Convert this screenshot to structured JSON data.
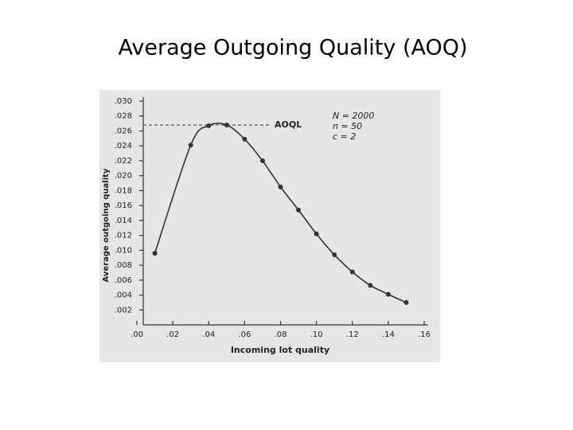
{
  "chart_data": {
    "type": "line",
    "title": "Average Outgoing Quality (AOQ)",
    "x_label": "Incoming lot quality",
    "y_label": "Average outgoing quality",
    "x": [
      0.01,
      0.03,
      0.04,
      0.05,
      0.06,
      0.07,
      0.08,
      0.09,
      0.1,
      0.11,
      0.12,
      0.13,
      0.14,
      0.15
    ],
    "values": [
      0.0096,
      0.0241,
      0.0267,
      0.0268,
      0.0249,
      0.022,
      0.0185,
      0.0154,
      0.0122,
      0.0094,
      0.0071,
      0.0053,
      0.0041,
      0.003
    ],
    "color": "#333333",
    "aoql": 0.0268,
    "aoql_label": "AOQL",
    "annotations": [
      "N = 2000",
      "n = 50",
      "c = 2"
    ],
    "xlim": [
      0,
      0.16
    ],
    "xticks": [
      {
        "value": 0,
        "label": ".00"
      },
      {
        "value": 0.02,
        "label": ".02"
      },
      {
        "value": 0.04,
        "label": ".04"
      },
      {
        "value": 0.06,
        "label": ".06"
      },
      {
        "value": 0.08,
        "label": ".08"
      },
      {
        "value": 0.1,
        "label": ".10"
      },
      {
        "value": 0.12,
        "label": ".12"
      },
      {
        "value": 0.14,
        "label": ".14"
      },
      {
        "value": 0.16,
        "label": ".16"
      }
    ],
    "ylim": [
      0,
      0.03
    ],
    "yticks": [
      {
        "value": 0.002,
        "label": ".002"
      },
      {
        "value": 0.004,
        "label": ".004"
      },
      {
        "value": 0.006,
        "label": ".006"
      },
      {
        "value": 0.008,
        "label": ".008"
      },
      {
        "value": 0.01,
        "label": ".010"
      },
      {
        "value": 0.012,
        "label": ".012"
      },
      {
        "value": 0.014,
        "label": ".014"
      },
      {
        "value": 0.016,
        "label": ".016"
      },
      {
        "value": 0.018,
        "label": ".018"
      },
      {
        "value": 0.02,
        "label": ".020"
      },
      {
        "value": 0.022,
        "label": ".022"
      },
      {
        "value": 0.024,
        "label": ".024"
      },
      {
        "value": 0.026,
        "label": ".026"
      },
      {
        "value": 0.028,
        "label": ".028"
      },
      {
        "value": 0.03,
        "label": ".030"
      }
    ]
  }
}
